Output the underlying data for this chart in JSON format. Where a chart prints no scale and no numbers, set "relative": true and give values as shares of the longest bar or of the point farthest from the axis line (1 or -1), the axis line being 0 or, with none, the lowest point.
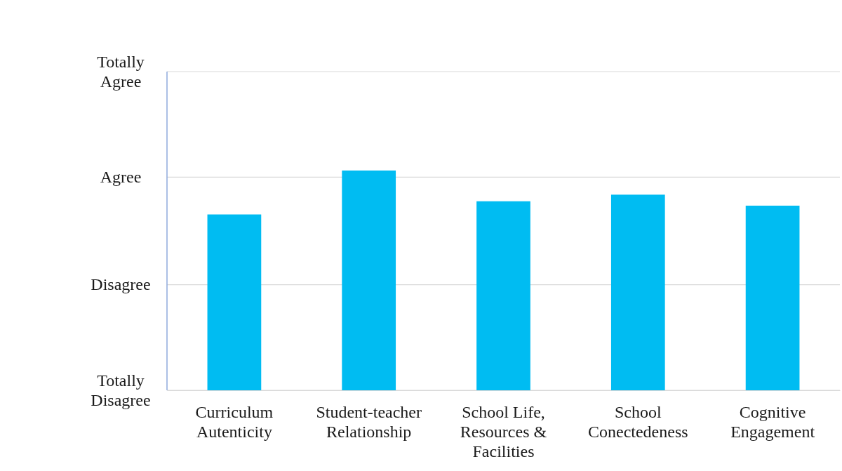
{
  "chart_data": {
    "type": "bar",
    "relative": true,
    "categories": [
      "Curriculum Autenticity",
      "Student-teacher Relationship",
      "School Life, Resources & Facilities",
      "School Conectedeness",
      "Cognitive Engagement"
    ],
    "values": [
      0.8,
      1,
      0.86,
      0.89,
      0.84
    ],
    "color": "#00bcf2",
    "ref_lines": [
      {
        "axis": "y",
        "value": 0,
        "label": "Totally Disagree",
        "color": "#d9d9d9"
      },
      {
        "axis": "y",
        "value": 0.48,
        "label": "Disagree",
        "color": "#d9d9d9"
      },
      {
        "axis": "y",
        "value": 0.97,
        "label": "Agree",
        "color": "#d9d9d9"
      },
      {
        "axis": "y",
        "value": 1.45,
        "label": "Totally Agree",
        "color": "#d9d9d9"
      }
    ]
  }
}
